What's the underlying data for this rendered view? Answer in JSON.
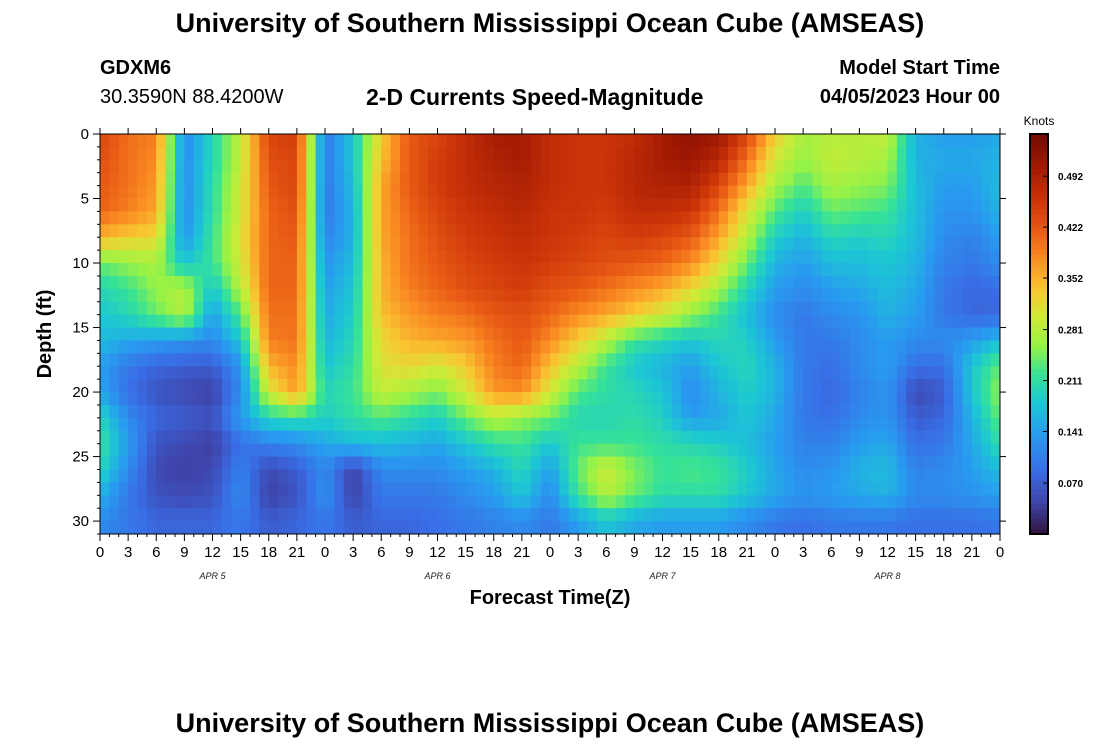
{
  "header": {
    "title": "University of Southern Mississippi Ocean Cube (AMSEAS)",
    "station_name": "GDXM6",
    "station_coords": "30.3590N  88.4200W",
    "subtitle": "2-D Currents Speed-Magnitude",
    "start_label": "Model Start Time",
    "start_value": "04/05/2023 Hour 00"
  },
  "footer": {
    "title": "University of Southern Mississippi Ocean Cube (AMSEAS)"
  },
  "chart_data": {
    "type": "heatmap",
    "xlabel": "Forecast Time(Z)",
    "ylabel": "Depth (ft)",
    "x_unit": "hours since model start",
    "x_range": [
      0,
      96
    ],
    "ylim": [
      0,
      31
    ],
    "y_inverted": true,
    "x_tick_hours": [
      0,
      3,
      6,
      9,
      12,
      15,
      18,
      21,
      24,
      27,
      30,
      33,
      36,
      39,
      42,
      45,
      48,
      51,
      54,
      57,
      60,
      63,
      66,
      69,
      72,
      75,
      78,
      81,
      84,
      87,
      90,
      93,
      96
    ],
    "x_tick_labels": [
      "0",
      "3",
      "6",
      "9",
      "12",
      "15",
      "18",
      "21",
      "0",
      "3",
      "6",
      "9",
      "12",
      "15",
      "18",
      "21",
      "0",
      "3",
      "6",
      "9",
      "12",
      "15",
      "18",
      "21",
      "0",
      "3",
      "6",
      "9",
      "12",
      "15",
      "18",
      "21",
      "0"
    ],
    "y_ticks": [
      0,
      5,
      10,
      15,
      20,
      25,
      30
    ],
    "y_tick_labels": [
      "0",
      "5",
      "10",
      "15",
      "20",
      "25",
      "30"
    ],
    "day_labels": [
      {
        "label": "APR 5",
        "hour": 12
      },
      {
        "label": "APR 6",
        "hour": 36
      },
      {
        "label": "APR 7",
        "hour": 60
      },
      {
        "label": "APR 8",
        "hour": 84
      }
    ],
    "colorbar": {
      "title": "Knots",
      "ticks": [
        0.07,
        0.141,
        0.211,
        0.281,
        0.352,
        0.422,
        0.492
      ],
      "tick_labels": [
        "0.070",
        "0.141",
        "0.211",
        "0.281",
        "0.352",
        "0.422",
        "0.492"
      ],
      "range": [
        0.0,
        0.55
      ]
    },
    "depths_ft": [
      0,
      2,
      4,
      6,
      8,
      10,
      12,
      14,
      16,
      18,
      20,
      22,
      24,
      26,
      28,
      30
    ],
    "grid_hour_step": 3,
    "speed_knots": [
      [
        0.44,
        0.4,
        0.39,
        0.12,
        0.2,
        0.29,
        0.44,
        0.45,
        0.1,
        0.18,
        0.33,
        0.42,
        0.44,
        0.47,
        0.5,
        0.5,
        0.47,
        0.46,
        0.46,
        0.47,
        0.5,
        0.52,
        0.51,
        0.44,
        0.33,
        0.27,
        0.28,
        0.28,
        0.29,
        0.16,
        0.14,
        0.14,
        0.15
      ],
      [
        0.43,
        0.4,
        0.38,
        0.12,
        0.2,
        0.29,
        0.43,
        0.44,
        0.1,
        0.18,
        0.34,
        0.42,
        0.45,
        0.47,
        0.49,
        0.5,
        0.47,
        0.46,
        0.46,
        0.48,
        0.5,
        0.51,
        0.48,
        0.4,
        0.3,
        0.26,
        0.29,
        0.28,
        0.27,
        0.16,
        0.15,
        0.15,
        0.16
      ],
      [
        0.42,
        0.4,
        0.37,
        0.12,
        0.21,
        0.3,
        0.42,
        0.44,
        0.1,
        0.17,
        0.36,
        0.42,
        0.45,
        0.47,
        0.48,
        0.49,
        0.47,
        0.46,
        0.46,
        0.48,
        0.49,
        0.49,
        0.44,
        0.36,
        0.27,
        0.23,
        0.27,
        0.26,
        0.25,
        0.17,
        0.14,
        0.14,
        0.17
      ],
      [
        0.41,
        0.39,
        0.36,
        0.12,
        0.21,
        0.3,
        0.41,
        0.43,
        0.1,
        0.16,
        0.36,
        0.41,
        0.44,
        0.46,
        0.47,
        0.48,
        0.46,
        0.46,
        0.45,
        0.47,
        0.47,
        0.46,
        0.4,
        0.31,
        0.23,
        0.19,
        0.24,
        0.23,
        0.22,
        0.17,
        0.13,
        0.13,
        0.16
      ],
      [
        0.35,
        0.33,
        0.32,
        0.13,
        0.22,
        0.31,
        0.41,
        0.42,
        0.11,
        0.16,
        0.36,
        0.4,
        0.43,
        0.45,
        0.46,
        0.47,
        0.46,
        0.45,
        0.44,
        0.45,
        0.44,
        0.42,
        0.36,
        0.28,
        0.19,
        0.16,
        0.2,
        0.19,
        0.2,
        0.17,
        0.12,
        0.11,
        0.14
      ],
      [
        0.24,
        0.26,
        0.27,
        0.18,
        0.22,
        0.3,
        0.41,
        0.41,
        0.13,
        0.17,
        0.35,
        0.4,
        0.42,
        0.44,
        0.45,
        0.46,
        0.45,
        0.44,
        0.43,
        0.42,
        0.41,
        0.38,
        0.32,
        0.24,
        0.16,
        0.14,
        0.17,
        0.17,
        0.18,
        0.16,
        0.11,
        0.1,
        0.12
      ],
      [
        0.2,
        0.22,
        0.26,
        0.28,
        0.18,
        0.28,
        0.41,
        0.41,
        0.14,
        0.18,
        0.35,
        0.39,
        0.41,
        0.43,
        0.44,
        0.45,
        0.43,
        0.42,
        0.4,
        0.38,
        0.36,
        0.32,
        0.27,
        0.2,
        0.14,
        0.12,
        0.14,
        0.15,
        0.17,
        0.15,
        0.1,
        0.08,
        0.09
      ],
      [
        0.18,
        0.2,
        0.24,
        0.28,
        0.14,
        0.23,
        0.4,
        0.4,
        0.15,
        0.19,
        0.34,
        0.37,
        0.39,
        0.4,
        0.42,
        0.43,
        0.41,
        0.38,
        0.36,
        0.33,
        0.3,
        0.26,
        0.22,
        0.17,
        0.12,
        0.1,
        0.12,
        0.13,
        0.16,
        0.14,
        0.1,
        0.08,
        0.08
      ],
      [
        0.17,
        0.15,
        0.14,
        0.13,
        0.12,
        0.18,
        0.39,
        0.4,
        0.16,
        0.2,
        0.32,
        0.35,
        0.36,
        0.37,
        0.4,
        0.42,
        0.38,
        0.33,
        0.28,
        0.22,
        0.2,
        0.18,
        0.2,
        0.19,
        0.14,
        0.1,
        0.1,
        0.12,
        0.14,
        0.12,
        0.12,
        0.14,
        0.17
      ],
      [
        0.14,
        0.1,
        0.08,
        0.07,
        0.07,
        0.13,
        0.35,
        0.38,
        0.18,
        0.21,
        0.31,
        0.32,
        0.3,
        0.33,
        0.39,
        0.41,
        0.34,
        0.28,
        0.22,
        0.18,
        0.16,
        0.14,
        0.18,
        0.2,
        0.16,
        0.1,
        0.09,
        0.12,
        0.14,
        0.09,
        0.09,
        0.18,
        0.24
      ],
      [
        0.15,
        0.09,
        0.06,
        0.05,
        0.04,
        0.12,
        0.3,
        0.37,
        0.2,
        0.22,
        0.29,
        0.27,
        0.25,
        0.3,
        0.37,
        0.38,
        0.3,
        0.23,
        0.21,
        0.2,
        0.18,
        0.12,
        0.16,
        0.19,
        0.16,
        0.1,
        0.08,
        0.11,
        0.13,
        0.05,
        0.07,
        0.18,
        0.26
      ],
      [
        0.2,
        0.12,
        0.08,
        0.07,
        0.06,
        0.14,
        0.2,
        0.21,
        0.19,
        0.21,
        0.23,
        0.21,
        0.19,
        0.24,
        0.28,
        0.26,
        0.24,
        0.2,
        0.2,
        0.21,
        0.19,
        0.14,
        0.15,
        0.18,
        0.15,
        0.1,
        0.09,
        0.12,
        0.13,
        0.07,
        0.08,
        0.16,
        0.24
      ],
      [
        0.22,
        0.14,
        0.06,
        0.05,
        0.04,
        0.09,
        0.11,
        0.12,
        0.15,
        0.17,
        0.17,
        0.16,
        0.15,
        0.18,
        0.21,
        0.22,
        0.18,
        0.22,
        0.22,
        0.22,
        0.21,
        0.2,
        0.19,
        0.17,
        0.14,
        0.11,
        0.11,
        0.14,
        0.15,
        0.09,
        0.1,
        0.15,
        0.21
      ],
      [
        0.2,
        0.12,
        0.05,
        0.04,
        0.05,
        0.11,
        0.05,
        0.07,
        0.12,
        0.04,
        0.12,
        0.12,
        0.12,
        0.14,
        0.16,
        0.2,
        0.14,
        0.24,
        0.3,
        0.25,
        0.22,
        0.23,
        0.22,
        0.19,
        0.15,
        0.12,
        0.13,
        0.16,
        0.17,
        0.11,
        0.12,
        0.14,
        0.17
      ],
      [
        0.16,
        0.1,
        0.06,
        0.05,
        0.06,
        0.12,
        0.04,
        0.06,
        0.13,
        0.04,
        0.1,
        0.1,
        0.1,
        0.12,
        0.14,
        0.18,
        0.12,
        0.22,
        0.28,
        0.24,
        0.21,
        0.21,
        0.21,
        0.18,
        0.15,
        0.13,
        0.14,
        0.15,
        0.16,
        0.12,
        0.12,
        0.13,
        0.14
      ],
      [
        0.12,
        0.1,
        0.08,
        0.08,
        0.08,
        0.1,
        0.07,
        0.08,
        0.1,
        0.07,
        0.08,
        0.08,
        0.09,
        0.1,
        0.11,
        0.12,
        0.1,
        0.14,
        0.18,
        0.15,
        0.14,
        0.14,
        0.14,
        0.12,
        0.1,
        0.09,
        0.1,
        0.1,
        0.1,
        0.09,
        0.09,
        0.09,
        0.1
      ]
    ]
  }
}
